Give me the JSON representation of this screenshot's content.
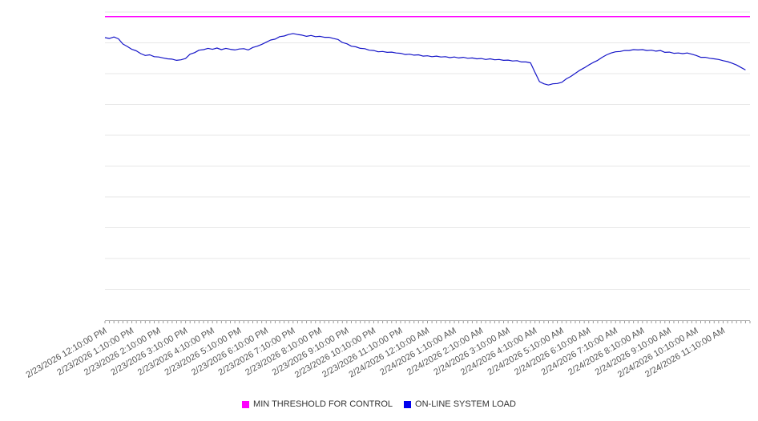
{
  "chart_data": {
    "type": "line",
    "title": "",
    "xlabel": "",
    "ylabel": "",
    "ylim": [
      0,
      100
    ],
    "gridline_step": 10,
    "grid": true,
    "legend_position": "bottom",
    "x_unit_minutes": 10,
    "x_tick_labels": [
      "2/23/2026 12:10:00 PM",
      "2/23/2026 1:10:00 PM",
      "2/23/2026 2:10:00 PM",
      "2/23/2026 3:10:00 PM",
      "2/23/2026 4:10:00 PM",
      "2/23/2026 5:10:00 PM",
      "2/23/2026 6:10:00 PM",
      "2/23/2026 7:10:00 PM",
      "2/23/2026 8:10:00 PM",
      "2/23/2026 9:10:00 PM",
      "2/23/2026 10:10:00 PM",
      "2/23/2026 11:10:00 PM",
      "2/24/2026 12:10:00 AM",
      "2/24/2026 1:10:00 AM",
      "2/24/2026 2:10:00 AM",
      "2/24/2026 3:10:00 AM",
      "2/24/2026 4:10:00 AM",
      "2/24/2026 5:10:00 AM",
      "2/24/2026 6:10:00 AM",
      "2/24/2026 7:10:00 AM",
      "2/24/2026 8:10:00 AM",
      "2/24/2026 9:10:00 AM",
      "2/24/2026 10:10:00 AM",
      "2/24/2026 11:10:00 AM"
    ],
    "series": [
      {
        "name": "MIN THRESHOLD FOR CONTROL",
        "type": "threshold",
        "color": "#ff00ff",
        "value": 98.5
      },
      {
        "name": "ON-LINE SYSTEM LOAD",
        "type": "line",
        "color": "#1515c8",
        "values": [
          91.7,
          91.4,
          91.9,
          91.3,
          89.6,
          88.8,
          87.9,
          87.4,
          86.5,
          85.9,
          86.1,
          85.5,
          85.4,
          85.1,
          84.8,
          84.7,
          84.3,
          84.5,
          84.9,
          86.3,
          86.8,
          87.6,
          87.8,
          88.2,
          87.9,
          88.3,
          87.8,
          88.2,
          87.9,
          87.7,
          88.0,
          88.1,
          87.7,
          88.5,
          88.9,
          89.5,
          90.2,
          90.9,
          91.2,
          92.0,
          92.2,
          92.7,
          93.0,
          92.7,
          92.5,
          92.1,
          92.4,
          92.0,
          92.1,
          91.8,
          91.8,
          91.4,
          91.1,
          90.1,
          89.7,
          88.9,
          88.7,
          88.2,
          88.1,
          87.6,
          87.5,
          87.1,
          87.2,
          86.9,
          87.0,
          86.7,
          86.6,
          86.2,
          86.3,
          86.0,
          86.1,
          85.7,
          85.8,
          85.5,
          85.7,
          85.4,
          85.5,
          85.2,
          85.4,
          85.1,
          85.3,
          85.0,
          85.1,
          84.8,
          84.9,
          84.6,
          84.8,
          84.5,
          84.6,
          84.3,
          84.4,
          84.1,
          84.2,
          83.8,
          83.8,
          83.5,
          80.4,
          77.4,
          76.7,
          76.3,
          76.7,
          76.8,
          77.2,
          78.3,
          79.1,
          80.1,
          81.1,
          81.9,
          82.8,
          83.6,
          84.3,
          85.3,
          86.1,
          86.7,
          87.1,
          87.2,
          87.5,
          87.5,
          87.8,
          87.7,
          87.8,
          87.5,
          87.6,
          87.3,
          87.5,
          86.9,
          87.0,
          86.6,
          86.7,
          86.5,
          86.7,
          86.3,
          85.9,
          85.3,
          85.3,
          85.0,
          84.8,
          84.6,
          84.2,
          83.9,
          83.4,
          82.8,
          82.0,
          81.2
        ]
      }
    ]
  }
}
